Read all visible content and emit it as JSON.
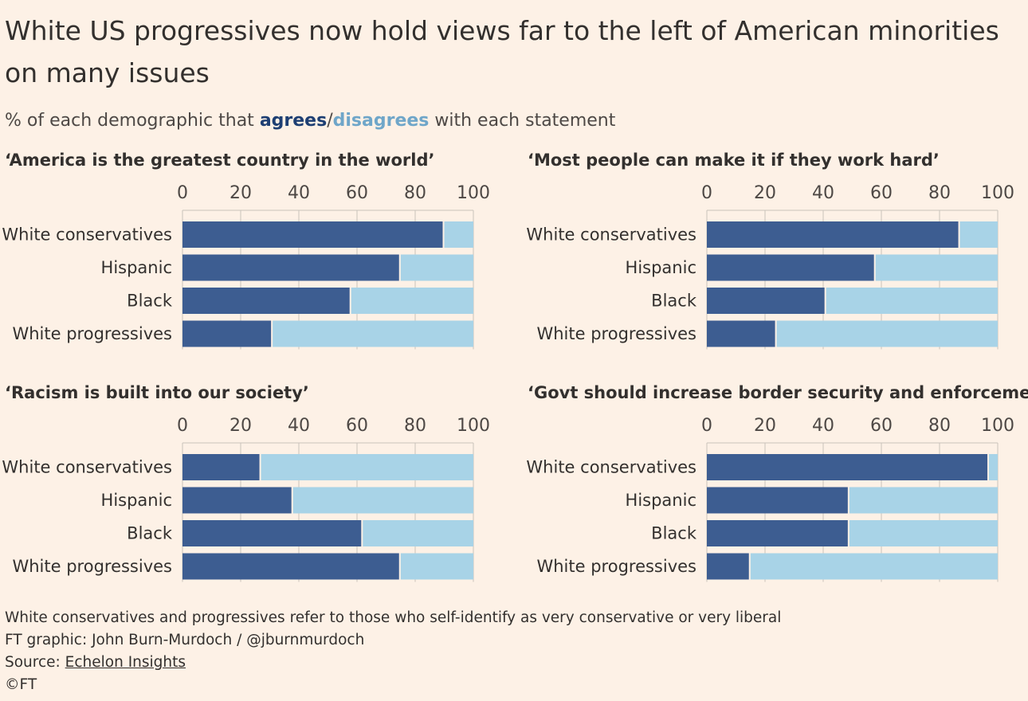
{
  "title": "White US progressives now hold views far to the left of American minorities on many issues",
  "subtitle": {
    "prefix": "% of each demographic that ",
    "agree_word": "agrees",
    "slash": "/",
    "disagree_word": "disagrees",
    "suffix": " with each statement"
  },
  "colors": {
    "background": "#fdf1e6",
    "agree": "#3d5d91",
    "disagree": "#a8d3e7",
    "axis_text": "#4d4845",
    "gridline": "#c9c2bb"
  },
  "chart_data": [
    {
      "type": "bar",
      "orientation": "horizontal",
      "stacked": true,
      "title": "‘America is the greatest country in the world’",
      "categories": [
        "White conservatives",
        "Hispanic",
        "Black",
        "White progressives"
      ],
      "series": [
        {
          "name": "agrees",
          "values": [
            90,
            75,
            58,
            31
          ]
        },
        {
          "name": "disagrees",
          "values": [
            10,
            25,
            42,
            69
          ]
        }
      ],
      "xlim": [
        0,
        100
      ],
      "xticks": [
        "0",
        "20",
        "40",
        "60",
        "80",
        "100"
      ],
      "grid": true
    },
    {
      "type": "bar",
      "orientation": "horizontal",
      "stacked": true,
      "title": "‘Most people can make it if they work hard’",
      "categories": [
        "White conservatives",
        "Hispanic",
        "Black",
        "White progressives"
      ],
      "series": [
        {
          "name": "agrees",
          "values": [
            87,
            58,
            41,
            24
          ]
        },
        {
          "name": "disagrees",
          "values": [
            13,
            42,
            59,
            76
          ]
        }
      ],
      "xlim": [
        0,
        100
      ],
      "xticks": [
        "0",
        "20",
        "40",
        "60",
        "80",
        "100"
      ],
      "grid": true
    },
    {
      "type": "bar",
      "orientation": "horizontal",
      "stacked": true,
      "title": "‘Racism is built into our society’",
      "categories": [
        "White conservatives",
        "Hispanic",
        "Black",
        "White progressives"
      ],
      "series": [
        {
          "name": "agrees",
          "values": [
            27,
            38,
            62,
            75
          ]
        },
        {
          "name": "disagrees",
          "values": [
            73,
            62,
            38,
            25
          ]
        }
      ],
      "xlim": [
        0,
        100
      ],
      "xticks": [
        "0",
        "20",
        "40",
        "60",
        "80",
        "100"
      ],
      "grid": true
    },
    {
      "type": "bar",
      "orientation": "horizontal",
      "stacked": true,
      "title": "‘Govt should increase border security and enforcement’*",
      "categories": [
        "White conservatives",
        "Hispanic",
        "Black",
        "White progressives"
      ],
      "series": [
        {
          "name": "agrees",
          "values": [
            97,
            49,
            49,
            15
          ]
        },
        {
          "name": "disagrees",
          "values": [
            3,
            51,
            51,
            85
          ]
        }
      ],
      "xlim": [
        0,
        100
      ],
      "xticks": [
        "0",
        "20",
        "40",
        "60",
        "80",
        "100"
      ],
      "grid": true
    }
  ],
  "footer": {
    "note": "White conservatives and progressives refer to those who self-identify as very conservative or very liberal",
    "credit": "FT graphic: John Burn-Murdoch / @jburnmurdoch",
    "source_prefix": "Source: ",
    "source_link": "Echelon Insights",
    "copyright": "©FT"
  }
}
